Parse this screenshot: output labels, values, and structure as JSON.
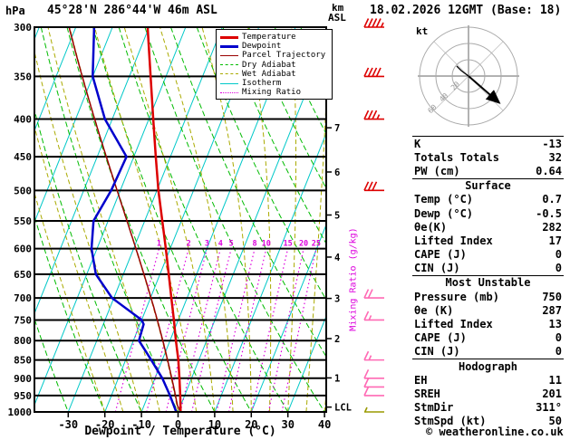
{
  "header": {
    "pressure_unit": "hPa",
    "station": "45°28'N 286°44'W 46m ASL",
    "datetime": "18.02.2026 12GMT (Base: 18)",
    "alt_unit_km": "km",
    "alt_unit_asl": "ASL"
  },
  "chart_data": {
    "type": "skewt-logp",
    "pressure_range": [
      300,
      1000
    ],
    "pressure_ticks": [
      300,
      350,
      400,
      450,
      500,
      550,
      600,
      650,
      700,
      750,
      800,
      850,
      900,
      950,
      1000
    ],
    "temp_ticks": [
      -30,
      -20,
      -10,
      0,
      10,
      20,
      30,
      40
    ],
    "xlabel": "Dewpoint / Temperature (°C)",
    "km_ticks": [
      {
        "label": "7",
        "p": 411
      },
      {
        "label": "6",
        "p": 472
      },
      {
        "label": "5",
        "p": 540
      },
      {
        "label": "4",
        "p": 616
      },
      {
        "label": "3",
        "p": 701
      },
      {
        "label": "2",
        "p": 795
      },
      {
        "label": "1",
        "p": 899
      },
      {
        "label": "LCL",
        "p": 985
      }
    ],
    "isotherm_step": 10,
    "dry_adiabat_step": 10,
    "wet_adiabat_start_temps": [
      -20,
      -15,
      -10,
      -5,
      0,
      5,
      10,
      15,
      20,
      25,
      30,
      35,
      40
    ],
    "mixing_ratio_lines": [
      1,
      2,
      3,
      4,
      5,
      8,
      10,
      15,
      20,
      25
    ],
    "mixing_ratio_axis_label": "Mixing Ratio (g/kg)",
    "temperature_profile": [
      [
        1000,
        0.7
      ],
      [
        950,
        -1.2
      ],
      [
        900,
        -3.3
      ],
      [
        850,
        -5.6
      ],
      [
        800,
        -8.4
      ],
      [
        750,
        -11.2
      ],
      [
        700,
        -14.3
      ],
      [
        650,
        -17.6
      ],
      [
        600,
        -21.2
      ],
      [
        550,
        -25.2
      ],
      [
        500,
        -29.6
      ],
      [
        450,
        -34.0
      ],
      [
        400,
        -38.8
      ],
      [
        350,
        -44.2
      ],
      [
        300,
        -50.4
      ]
    ],
    "dewpoint_profile": [
      [
        1000,
        -0.5
      ],
      [
        950,
        -4
      ],
      [
        900,
        -8
      ],
      [
        850,
        -13
      ],
      [
        800,
        -18.5
      ],
      [
        760,
        -19
      ],
      [
        750,
        -20
      ],
      [
        700,
        -30.5
      ],
      [
        650,
        -37.5
      ],
      [
        600,
        -41.5
      ],
      [
        550,
        -44
      ],
      [
        500,
        -42.5
      ],
      [
        450,
        -42
      ],
      [
        400,
        -52
      ],
      [
        350,
        -60
      ],
      [
        300,
        -65
      ]
    ],
    "surface_parcel": {
      "pressure": 1000,
      "temp": 0.7,
      "dewp": -0.5
    },
    "wind_barbs": [
      {
        "p": 300,
        "spd": 45,
        "color": "#dd0000"
      },
      {
        "p": 350,
        "spd": 40,
        "color": "#dd0000"
      },
      {
        "p": 400,
        "spd": 35,
        "color": "#dd0000"
      },
      {
        "p": 500,
        "spd": 30,
        "color": "#dd0000"
      },
      {
        "p": 700,
        "spd": 20,
        "color": "#ff69b4"
      },
      {
        "p": 750,
        "spd": 15,
        "color": "#ff69b4"
      },
      {
        "p": 850,
        "spd": 15,
        "color": "#ff69b4"
      },
      {
        "p": 900,
        "spd": 10,
        "color": "#ff69b4"
      },
      {
        "p": 925,
        "spd": 10,
        "color": "#ff69b4"
      },
      {
        "p": 950,
        "spd": 10,
        "color": "#ff69b4"
      },
      {
        "p": 1000,
        "spd": 5,
        "color": "#9a9a00"
      }
    ]
  },
  "legend": {
    "items": [
      {
        "label": "Temperature",
        "color": "#dd0000",
        "style": "solid",
        "width": 2.5
      },
      {
        "label": "Dewpoint",
        "color": "#0000cc",
        "style": "solid",
        "width": 2.5
      },
      {
        "label": "Parcel Trajectory",
        "color": "#990000",
        "style": "solid",
        "width": 1.5
      },
      {
        "label": "Dry Adiabat",
        "color": "#00bb00",
        "style": "dashed",
        "width": 1
      },
      {
        "label": "Wet Adiabat",
        "color": "#aaaa00",
        "style": "dashed",
        "width": 1
      },
      {
        "label": "Isotherm",
        "color": "#00c8c8",
        "style": "solid",
        "width": 1
      },
      {
        "label": "Mixing Ratio",
        "color": "#dd00dd",
        "style": "dotted",
        "width": 1
      }
    ]
  },
  "hodograph": {
    "unit_label": "kt",
    "ring_values": [
      20,
      40,
      60
    ],
    "storm_dir_deg": 311,
    "storm_speed_kt": 50
  },
  "stats": {
    "intro": [
      {
        "label": "K",
        "value": "-13"
      },
      {
        "label": "Totals Totals",
        "value": "32"
      },
      {
        "label": "PW (cm)",
        "value": "0.64"
      }
    ],
    "sections": [
      {
        "header": "Surface",
        "rows": [
          {
            "label": "Temp (°C)",
            "value": "0.7"
          },
          {
            "label": "Dewp (°C)",
            "value": "-0.5"
          },
          {
            "label": "θe(K)",
            "value": "282"
          },
          {
            "label": "Lifted Index",
            "value": "17"
          },
          {
            "label": "CAPE (J)",
            "value": "0"
          },
          {
            "label": "CIN (J)",
            "value": "0"
          }
        ]
      },
      {
        "header": "Most Unstable",
        "rows": [
          {
            "label": "Pressure (mb)",
            "value": "750"
          },
          {
            "label": "θe (K)",
            "value": "287"
          },
          {
            "label": "Lifted Index",
            "value": "13"
          },
          {
            "label": "CAPE (J)",
            "value": "0"
          },
          {
            "label": "CIN (J)",
            "value": "0"
          }
        ]
      },
      {
        "header": "Hodograph",
        "rows": [
          {
            "label": "EH",
            "value": "11"
          },
          {
            "label": "SREH",
            "value": "201"
          },
          {
            "label": "StmDir",
            "value": "311°"
          },
          {
            "label": "StmSpd (kt)",
            "value": "50"
          }
        ]
      }
    ]
  },
  "footer": {
    "copyright": "© weatheronline.co.uk"
  }
}
